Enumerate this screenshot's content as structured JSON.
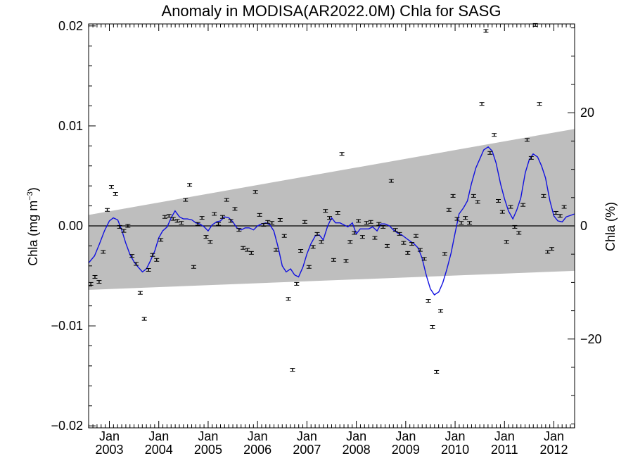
{
  "chart_data": {
    "type": "line",
    "title": "Anomaly in MODISA(AR2022.0M) Chla for SASG",
    "ylabel_left": "Chla (mg m",
    "ylabel_left_sup": "−3",
    "ylabel_left_close": ")",
    "ylabel_right": "Chla (%)",
    "xlim": [
      2002.58,
      2012.42
    ],
    "ylim": [
      -0.0202,
      0.0202
    ],
    "ylim_right": [
      -35.7,
      35.7
    ],
    "grid": false,
    "colors": {
      "line": "#1010e0",
      "band": "#bebebe",
      "points": "#000000",
      "zero": "#000000"
    },
    "x_ticks": [
      {
        "x": 2003.0,
        "month": "Jan",
        "year": "2003"
      },
      {
        "x": 2004.0,
        "month": "Jan",
        "year": "2004"
      },
      {
        "x": 2005.0,
        "month": "Jan",
        "year": "2005"
      },
      {
        "x": 2006.0,
        "month": "Jan",
        "year": "2006"
      },
      {
        "x": 2007.0,
        "month": "Jan",
        "year": "2007"
      },
      {
        "x": 2008.0,
        "month": "Jan",
        "year": "2008"
      },
      {
        "x": 2009.0,
        "month": "Jan",
        "year": "2009"
      },
      {
        "x": 2010.0,
        "month": "Jan",
        "year": "2010"
      },
      {
        "x": 2011.0,
        "month": "Jan",
        "year": "2011"
      },
      {
        "x": 2012.0,
        "month": "Jan",
        "year": "2012"
      }
    ],
    "y_ticks_left": [
      {
        "v": 0.02,
        "label": "0.02"
      },
      {
        "v": 0.01,
        "label": "0.01"
      },
      {
        "v": 0.0,
        "label": "0.00"
      },
      {
        "v": -0.01,
        "label": "−0.01"
      },
      {
        "v": -0.02,
        "label": "−0.02"
      }
    ],
    "y_ticks_right": [
      {
        "v": 20,
        "label": "20"
      },
      {
        "v": 0,
        "label": "0"
      },
      {
        "v": -20,
        "label": "−20"
      }
    ],
    "band": {
      "x": [
        2002.58,
        2012.42
      ],
      "upper": [
        0.0011,
        0.0097
      ],
      "lower": [
        -0.0064,
        -0.0045
      ]
    },
    "points": [
      [
        2002.625,
        -0.0058
      ],
      [
        2002.708,
        -0.0051
      ],
      [
        2002.792,
        -0.0056
      ],
      [
        2002.875,
        -0.0026
      ],
      [
        2002.958,
        0.0016
      ],
      [
        2003.042,
        0.0039
      ],
      [
        2003.125,
        0.0032
      ],
      [
        2003.208,
        -0.0001
      ],
      [
        2003.292,
        -0.0005
      ],
      [
        2003.375,
        0.0
      ],
      [
        2003.458,
        -0.003
      ],
      [
        2003.542,
        -0.0038
      ],
      [
        2003.625,
        -0.0067
      ],
      [
        2003.708,
        -0.0093
      ],
      [
        2003.792,
        -0.0044
      ],
      [
        2003.875,
        -0.0029
      ],
      [
        2003.958,
        -0.0034
      ],
      [
        2004.042,
        -0.0014
      ],
      [
        2004.125,
        0.0009
      ],
      [
        2004.208,
        0.001
      ],
      [
        2004.292,
        0.0007
      ],
      [
        2004.375,
        0.0005
      ],
      [
        2004.458,
        0.0003
      ],
      [
        2004.542,
        0.0026
      ],
      [
        2004.625,
        0.0041
      ],
      [
        2004.708,
        -0.0041
      ],
      [
        2004.792,
        0.0002
      ],
      [
        2004.875,
        0.0008
      ],
      [
        2004.958,
        -0.0011
      ],
      [
        2005.042,
        -0.0016
      ],
      [
        2005.125,
        0.0012
      ],
      [
        2005.208,
        0.0002
      ],
      [
        2005.292,
        0.0009
      ],
      [
        2005.375,
        0.0026
      ],
      [
        2005.458,
        0.0005
      ],
      [
        2005.542,
        0.0017
      ],
      [
        2005.625,
        -0.0004
      ],
      [
        2005.708,
        -0.0022
      ],
      [
        2005.792,
        -0.0024
      ],
      [
        2005.875,
        -0.0027
      ],
      [
        2005.958,
        0.0034
      ],
      [
        2006.042,
        0.0011
      ],
      [
        2006.125,
        0.0001
      ],
      [
        2006.208,
        0.0004
      ],
      [
        2006.292,
        0.0003
      ],
      [
        2006.375,
        -0.0024
      ],
      [
        2006.458,
        0.0006
      ],
      [
        2006.542,
        -0.001
      ],
      [
        2006.625,
        -0.0073
      ],
      [
        2006.708,
        -0.0144
      ],
      [
        2006.792,
        -0.0058
      ],
      [
        2006.875,
        -0.0025
      ],
      [
        2006.958,
        0.0004
      ],
      [
        2007.042,
        -0.0041
      ],
      [
        2007.125,
        -0.0021
      ],
      [
        2007.208,
        -0.0008
      ],
      [
        2007.292,
        -0.0016
      ],
      [
        2007.375,
        0.0015
      ],
      [
        2007.458,
        0.0008
      ],
      [
        2007.542,
        -0.0034
      ],
      [
        2007.625,
        0.0013
      ],
      [
        2007.708,
        0.0072
      ],
      [
        2007.792,
        -0.0035
      ],
      [
        2007.875,
        -0.0016
      ],
      [
        2007.958,
        -0.0007
      ],
      [
        2008.042,
        0.0005
      ],
      [
        2008.125,
        -0.0011
      ],
      [
        2008.208,
        0.0003
      ],
      [
        2008.292,
        0.0004
      ],
      [
        2008.375,
        -0.0012
      ],
      [
        2008.458,
        0.0002
      ],
      [
        2008.542,
        -0.0001
      ],
      [
        2008.625,
        -0.002
      ],
      [
        2008.708,
        0.0045
      ],
      [
        2008.792,
        -0.0004
      ],
      [
        2008.875,
        -0.0008
      ],
      [
        2008.958,
        -0.0017
      ],
      [
        2009.042,
        -0.0027
      ],
      [
        2009.125,
        -0.0018
      ],
      [
        2009.208,
        -0.001
      ],
      [
        2009.292,
        -0.0024
      ],
      [
        2009.375,
        -0.0033
      ],
      [
        2009.458,
        -0.0075
      ],
      [
        2009.542,
        -0.0101
      ],
      [
        2009.625,
        -0.0146
      ],
      [
        2009.708,
        -0.0085
      ],
      [
        2009.792,
        -0.0028
      ],
      [
        2009.875,
        0.0016
      ],
      [
        2009.958,
        0.003
      ],
      [
        2010.042,
        0.0007
      ],
      [
        2010.125,
        0.0003
      ],
      [
        2010.208,
        0.0008
      ],
      [
        2010.292,
        0.0003
      ],
      [
        2010.375,
        0.003
      ],
      [
        2010.458,
        0.0024
      ],
      [
        2010.542,
        0.0122
      ],
      [
        2010.625,
        0.0195
      ],
      [
        2010.708,
        0.0073
      ],
      [
        2010.792,
        0.0091
      ],
      [
        2010.875,
        0.0025
      ],
      [
        2010.958,
        0.0014
      ],
      [
        2011.042,
        -0.0016
      ],
      [
        2011.125,
        0.0019
      ],
      [
        2011.208,
        -0.0001
      ],
      [
        2011.292,
        -0.0007
      ],
      [
        2011.375,
        0.0021
      ],
      [
        2011.458,
        0.0086
      ],
      [
        2011.542,
        0.0068
      ],
      [
        2011.625,
        0.0201
      ],
      [
        2011.708,
        0.0122
      ],
      [
        2011.792,
        0.003
      ],
      [
        2011.875,
        -0.0026
      ],
      [
        2011.958,
        -0.0023
      ],
      [
        2012.042,
        0.0013
      ],
      [
        2012.125,
        0.001
      ],
      [
        2012.208,
        0.0019
      ]
    ],
    "smooth": [
      [
        2002.58,
        -0.0037
      ],
      [
        2002.7,
        -0.003
      ],
      [
        2002.8,
        -0.0018
      ],
      [
        2002.9,
        -0.0005
      ],
      [
        2003.0,
        0.0005
      ],
      [
        2003.08,
        0.0008
      ],
      [
        2003.17,
        0.0006
      ],
      [
        2003.25,
        -0.0004
      ],
      [
        2003.33,
        -0.0017
      ],
      [
        2003.42,
        -0.0029
      ],
      [
        2003.5,
        -0.0036
      ],
      [
        2003.58,
        -0.0041
      ],
      [
        2003.67,
        -0.0046
      ],
      [
        2003.75,
        -0.0043
      ],
      [
        2003.83,
        -0.0035
      ],
      [
        2003.92,
        -0.0025
      ],
      [
        2004.0,
        -0.0012
      ],
      [
        2004.08,
        -0.0005
      ],
      [
        2004.17,
        -0.0001
      ],
      [
        2004.25,
        0.0008
      ],
      [
        2004.33,
        0.0015
      ],
      [
        2004.42,
        0.0009
      ],
      [
        2004.5,
        0.0007
      ],
      [
        2004.58,
        0.0007
      ],
      [
        2004.67,
        0.0006
      ],
      [
        2004.75,
        0.0003
      ],
      [
        2004.83,
        0.0002
      ],
      [
        2004.92,
        -0.0001
      ],
      [
        2005.0,
        -0.0005
      ],
      [
        2005.08,
        0.0001
      ],
      [
        2005.17,
        0.0004
      ],
      [
        2005.25,
        0.0005
      ],
      [
        2005.33,
        0.0009
      ],
      [
        2005.42,
        0.0008
      ],
      [
        2005.5,
        0.0004
      ],
      [
        2005.58,
        -0.0002
      ],
      [
        2005.67,
        -0.0004
      ],
      [
        2005.75,
        -0.0002
      ],
      [
        2005.83,
        -0.0002
      ],
      [
        2005.92,
        -0.0004
      ],
      [
        2006.0,
        0.0
      ],
      [
        2006.08,
        0.0002
      ],
      [
        2006.17,
        0.0003
      ],
      [
        2006.25,
        0.0001
      ],
      [
        2006.33,
        -0.0005
      ],
      [
        2006.42,
        -0.0022
      ],
      [
        2006.5,
        -0.004
      ],
      [
        2006.58,
        -0.0046
      ],
      [
        2006.67,
        -0.0043
      ],
      [
        2006.75,
        -0.0049
      ],
      [
        2006.83,
        -0.0051
      ],
      [
        2006.92,
        -0.0041
      ],
      [
        2007.0,
        -0.0028
      ],
      [
        2007.08,
        -0.0018
      ],
      [
        2007.17,
        -0.001
      ],
      [
        2007.25,
        -0.0009
      ],
      [
        2007.33,
        -0.0014
      ],
      [
        2007.42,
        0.0
      ],
      [
        2007.5,
        0.0008
      ],
      [
        2007.58,
        0.0003
      ],
      [
        2007.67,
        0.0003
      ],
      [
        2007.75,
        0.0001
      ],
      [
        2007.83,
        -0.0001
      ],
      [
        2007.92,
        0.0003
      ],
      [
        2008.0,
        -0.0008
      ],
      [
        2008.08,
        -0.0003
      ],
      [
        2008.17,
        -0.0003
      ],
      [
        2008.25,
        -0.0003
      ],
      [
        2008.33,
        -0.0001
      ],
      [
        2008.42,
        -0.0005
      ],
      [
        2008.5,
        0.0002
      ],
      [
        2008.58,
        0.0002
      ],
      [
        2008.67,
        0.0
      ],
      [
        2008.75,
        -0.0004
      ],
      [
        2008.83,
        -0.0007
      ],
      [
        2008.92,
        -0.0009
      ],
      [
        2009.0,
        -0.0012
      ],
      [
        2009.08,
        -0.0015
      ],
      [
        2009.17,
        -0.0018
      ],
      [
        2009.25,
        -0.0022
      ],
      [
        2009.33,
        -0.0032
      ],
      [
        2009.42,
        -0.005
      ],
      [
        2009.5,
        -0.0063
      ],
      [
        2009.58,
        -0.0069
      ],
      [
        2009.67,
        -0.0066
      ],
      [
        2009.75,
        -0.0057
      ],
      [
        2009.83,
        -0.0044
      ],
      [
        2009.92,
        -0.0027
      ],
      [
        2010.0,
        -0.0007
      ],
      [
        2010.08,
        0.0012
      ],
      [
        2010.17,
        0.0018
      ],
      [
        2010.25,
        0.0025
      ],
      [
        2010.33,
        0.0042
      ],
      [
        2010.42,
        0.0058
      ],
      [
        2010.5,
        0.0067
      ],
      [
        2010.58,
        0.0076
      ],
      [
        2010.67,
        0.0079
      ],
      [
        2010.75,
        0.0075
      ],
      [
        2010.83,
        0.0063
      ],
      [
        2010.92,
        0.0042
      ],
      [
        2011.0,
        0.0027
      ],
      [
        2011.08,
        0.0015
      ],
      [
        2011.17,
        0.0007
      ],
      [
        2011.25,
        0.0016
      ],
      [
        2011.33,
        0.0028
      ],
      [
        2011.42,
        0.0053
      ],
      [
        2011.5,
        0.0066
      ],
      [
        2011.58,
        0.0072
      ],
      [
        2011.67,
        0.0069
      ],
      [
        2011.75,
        0.006
      ],
      [
        2011.83,
        0.0048
      ],
      [
        2011.92,
        0.0025
      ],
      [
        2012.0,
        0.001
      ],
      [
        2012.08,
        0.0005
      ],
      [
        2012.17,
        0.0004
      ],
      [
        2012.25,
        0.0009
      ],
      [
        2012.42,
        0.0012
      ]
    ]
  }
}
